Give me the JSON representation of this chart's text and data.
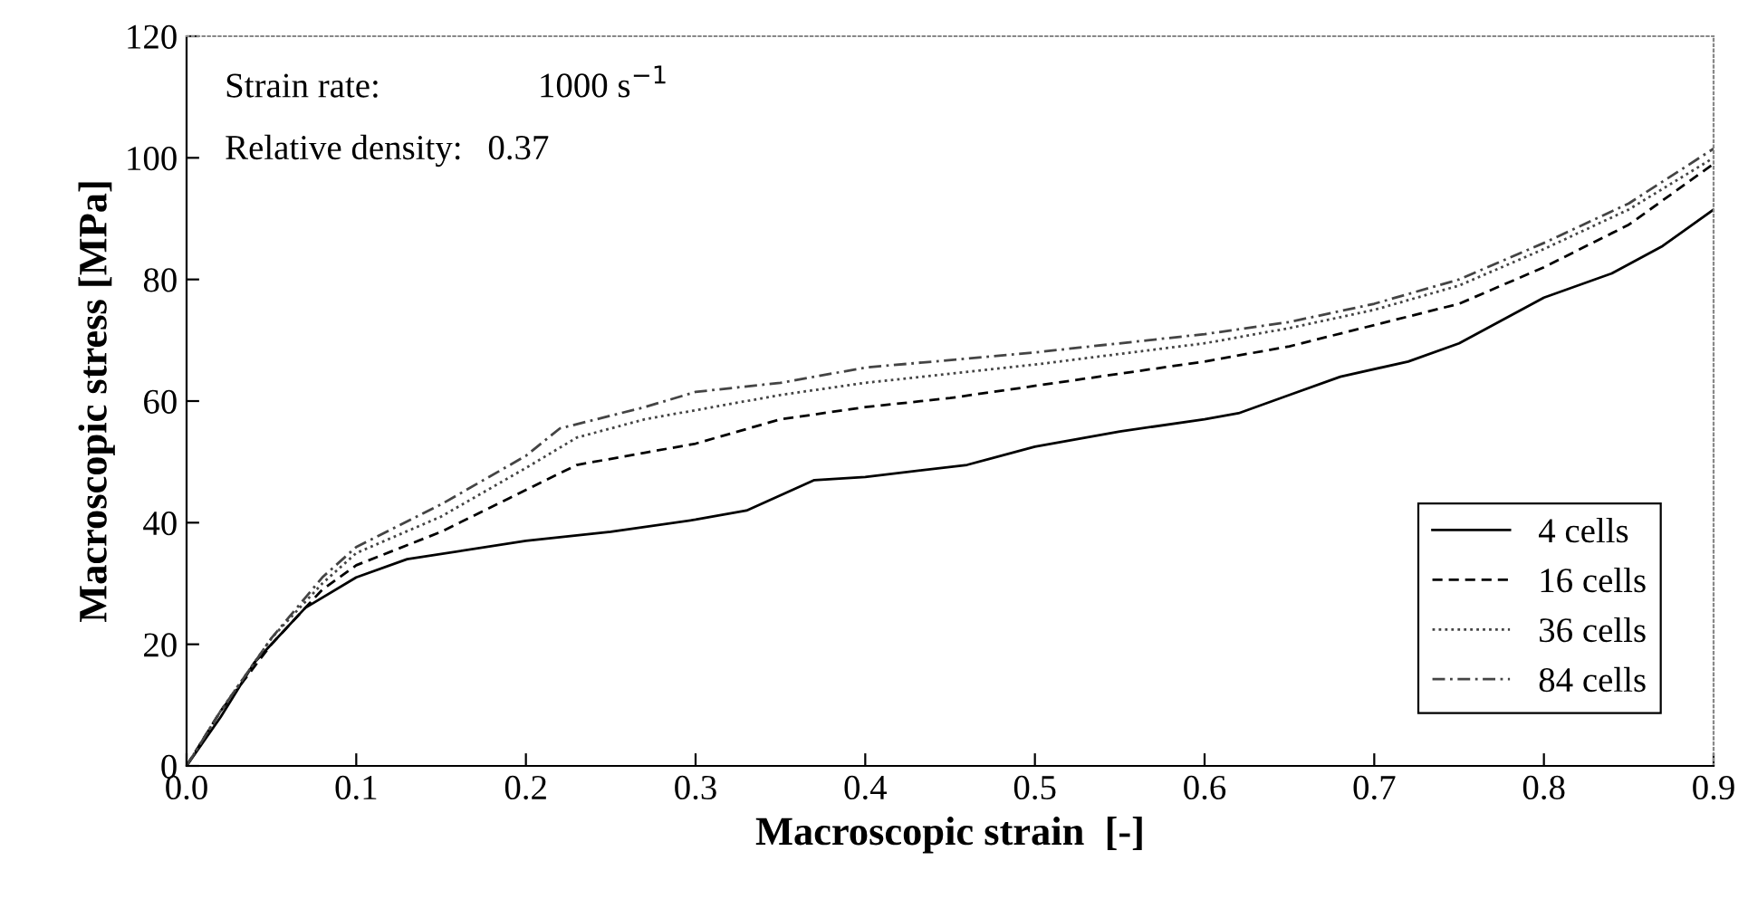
{
  "chart_data": {
    "type": "line",
    "xlabel": "Macroscopic strain  [-]",
    "ylabel": "Macroscopic stress [MPa]",
    "xlim": [
      0,
      0.9
    ],
    "xticks": [
      {
        "value": 0,
        "label": "0.0"
      },
      0.1,
      0.2,
      0.3,
      0.4,
      0.5,
      0.6,
      0.7,
      0.8,
      0.9
    ],
    "ylim": [
      0,
      120
    ],
    "yticks": [
      0,
      20,
      40,
      60,
      80,
      100,
      120
    ],
    "annotations": [
      "Strain rate:",
      "1000 s$^{−1}$",
      "Relative density:",
      "0.37"
    ],
    "grid": false,
    "legend": "bottom right",
    "marker": "none",
    "series": [
      {
        "name": "4 cells",
        "color": "#000000",
        "line_style": "solid",
        "x": [
          0,
          0.02,
          0.04,
          0.07,
          0.1,
          0.13,
          0.2,
          0.25,
          0.3,
          0.33,
          0.37,
          0.4,
          0.46,
          0.5,
          0.55,
          0.6,
          0.62,
          0.65,
          0.68,
          0.72,
          0.75,
          0.8,
          0.84,
          0.87,
          0.9
        ],
        "values": [
          0,
          8,
          17,
          26,
          31,
          34,
          37,
          38.5,
          40.5,
          42,
          47,
          47.5,
          49.5,
          52.5,
          55,
          57,
          58,
          61,
          64,
          66.5,
          69.5,
          77,
          81,
          85.5,
          91.5
        ]
      },
      {
        "name": "16 cells",
        "color": "#000000",
        "line_style": "dashed",
        "x": [
          0,
          0.02,
          0.05,
          0.08,
          0.1,
          0.15,
          0.19,
          0.23,
          0.27,
          0.3,
          0.35,
          0.4,
          0.45,
          0.5,
          0.55,
          0.6,
          0.65,
          0.7,
          0.75,
          0.8,
          0.85,
          0.9
        ],
        "values": [
          0,
          9,
          20,
          29,
          33,
          38.5,
          44,
          49.5,
          51.5,
          53,
          57,
          59,
          60.5,
          62.5,
          64.5,
          66.5,
          69,
          72.5,
          76,
          82,
          89,
          99
        ]
      },
      {
        "name": "36 cells",
        "color": "#444444",
        "line_style": "dotted",
        "x": [
          0,
          0.02,
          0.05,
          0.08,
          0.1,
          0.15,
          0.2,
          0.23,
          0.27,
          0.3,
          0.35,
          0.4,
          0.5,
          0.6,
          0.65,
          0.7,
          0.75,
          0.8,
          0.85,
          0.9
        ],
        "values": [
          0,
          9,
          21,
          30,
          35,
          41,
          49,
          54,
          57,
          58.5,
          61,
          63,
          66,
          69.5,
          72,
          75,
          79,
          85,
          91.5,
          100
        ]
      },
      {
        "name": "84 cells",
        "color": "#444444",
        "line_style": "dashdot",
        "x": [
          0,
          0.02,
          0.05,
          0.08,
          0.1,
          0.15,
          0.2,
          0.22,
          0.27,
          0.3,
          0.35,
          0.4,
          0.5,
          0.6,
          0.65,
          0.7,
          0.75,
          0.8,
          0.85,
          0.9
        ],
        "values": [
          0,
          9,
          21,
          31,
          36,
          43,
          51,
          55.5,
          59,
          61.5,
          63,
          65.5,
          68,
          71,
          73,
          76,
          80,
          86,
          92.5,
          101.5
        ]
      }
    ]
  }
}
